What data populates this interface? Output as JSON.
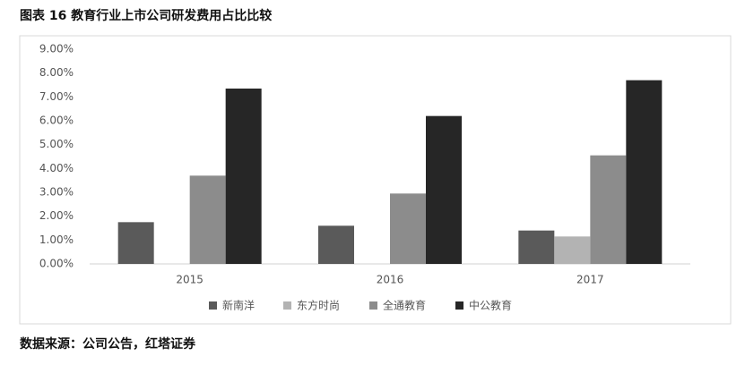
{
  "chart_data": {
    "type": "bar",
    "title": "图表 16  教育行业上市公司研发费用占比比较",
    "source": "数据来源：公司公告，红塔证券",
    "categories": [
      "2015",
      "2016",
      "2017"
    ],
    "series": [
      {
        "name": "新南洋",
        "color": "#5a5a5a",
        "values": [
          1.75,
          1.6,
          1.4
        ]
      },
      {
        "name": "东方时尚",
        "color": "#b3b3b3",
        "values": [
          null,
          null,
          1.15
        ]
      },
      {
        "name": "全通教育",
        "color": "#8c8c8c",
        "values": [
          3.7,
          2.95,
          4.55
        ]
      },
      {
        "name": "中公教育",
        "color": "#262626",
        "values": [
          7.35,
          6.2,
          7.7
        ]
      }
    ],
    "ylim": [
      0,
      9
    ],
    "yticks": [
      {
        "value": 0,
        "label": "0.00%"
      },
      {
        "value": 1,
        "label": "1.00%"
      },
      {
        "value": 2,
        "label": "2.00%"
      },
      {
        "value": 3,
        "label": "3.00%"
      },
      {
        "value": 4,
        "label": "4.00%"
      },
      {
        "value": 5,
        "label": "5.00%"
      },
      {
        "value": 6,
        "label": "6.00%"
      },
      {
        "value": 7,
        "label": "7.00%"
      },
      {
        "value": 8,
        "label": "8.00%"
      },
      {
        "value": 9,
        "label": "9.00%"
      }
    ],
    "grid": false,
    "legend": "bottom"
  }
}
